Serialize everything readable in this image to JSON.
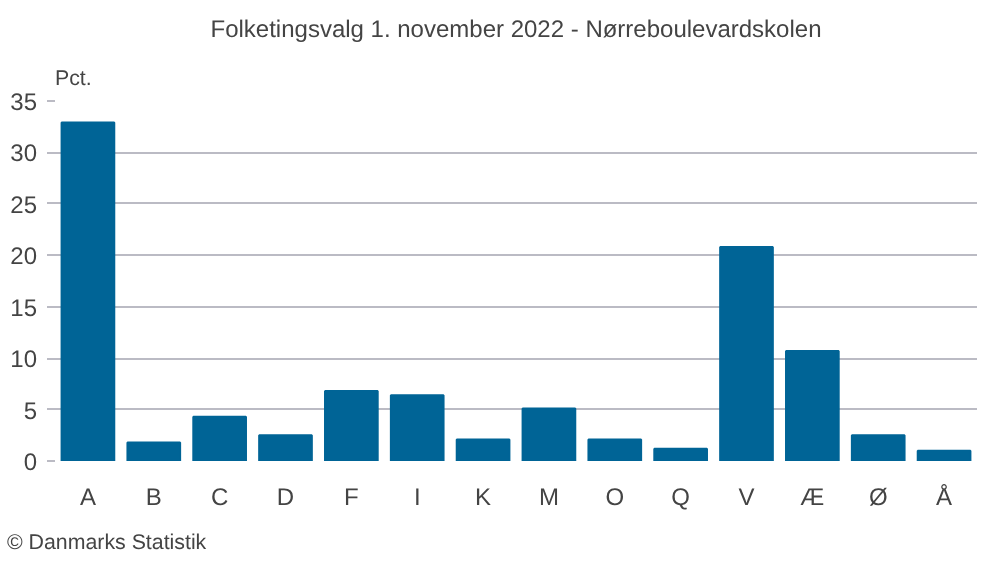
{
  "chart_data": {
    "type": "bar",
    "title": "Folketingsvalg 1. november 2022 - Nørreboulevardskolen",
    "ylabel": "Pct.",
    "categories": [
      "A",
      "B",
      "C",
      "D",
      "F",
      "I",
      "K",
      "M",
      "O",
      "Q",
      "V",
      "Æ",
      "Ø",
      "Å"
    ],
    "values": [
      32.9,
      1.8,
      4.3,
      2.5,
      6.8,
      6.4,
      2.1,
      5.1,
      2.1,
      1.2,
      20.8,
      10.7,
      2.5,
      1.0
    ],
    "color": "#006496",
    "ylim": [
      0,
      35
    ],
    "yticks": [
      0,
      5,
      10,
      15,
      20,
      25,
      30,
      35
    ],
    "grid": "y",
    "annotations": [
      "© Danmarks Statistik"
    ]
  }
}
